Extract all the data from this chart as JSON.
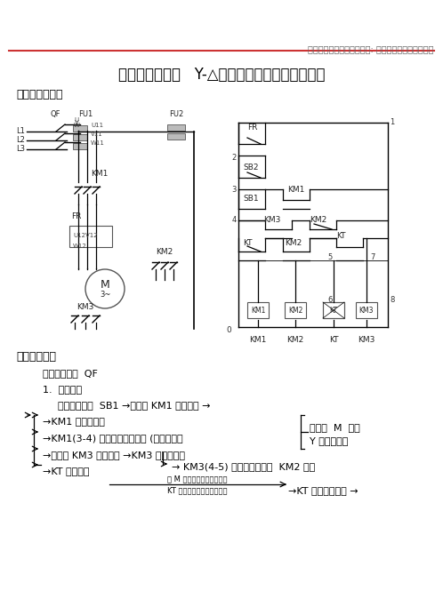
{
  "header_text": "宁波市数字图书馆网络课程: 机床电气系统装调与维修",
  "title": "三相异步电动机   Y-△降压启动控制运行操作说明",
  "section1": "一、电路原理图",
  "section2": "二、操作过程",
  "section2_sub1": "合上电源开关  QF",
  "section2_sub2": "1.  起动过程",
  "line1": "按下起动按钮  SB1 →接触器 KM1 线圈得电 →",
  "line2a": "→KM1 主触点闭合",
  "line2b": "→KM1(3-4) 辅助常开触点闭合 (形成自锁）",
  "line2c": "→接触器 KM3 线圈得电 →KM3 主触点闭合",
  "line2c2": "→ KM3(4-5) 互锁触点断开对  KM2 互锁",
  "line2d": "→KT 线圈得电",
  "line_right1": "电动机  M  接成",
  "line_right2": "Y 形降压启动",
  "line3a": "当 M 转速上升到一定值时，",
  "line3b": "KT 计时到设定值，延时结束",
  "line3c": "→KT 常闭触点分断 →",
  "bg_color": "#ffffff",
  "text_color": "#000000",
  "header_color": "#666666",
  "red_line_color": "#cc3333",
  "font_size_header": 7,
  "font_size_title": 12,
  "font_size_section": 9,
  "font_size_body": 8
}
